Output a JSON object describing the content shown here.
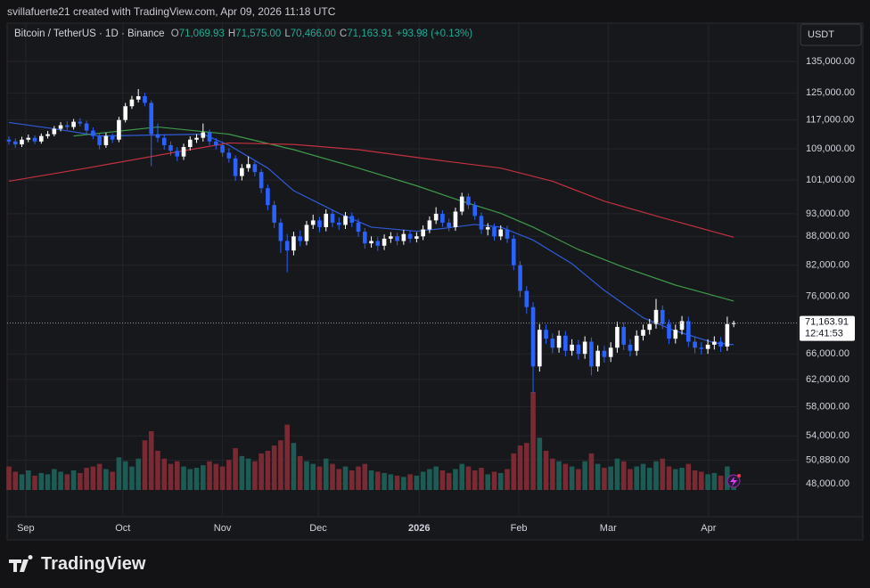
{
  "header": {
    "credit": "svillafuerte21 created with TradingView.com, Apr 09, 2026 11:18 UTC",
    "symbol": "Bitcoin / TetherUS · 1D · Binance",
    "ohlc": [
      {
        "label": "O",
        "value": "71,069.93"
      },
      {
        "label": "H",
        "value": "71,575.00"
      },
      {
        "label": "L",
        "value": "70,466.00"
      },
      {
        "label": "C",
        "value": "71,163.91"
      }
    ],
    "change": "+93.98 (+0.13%)",
    "currency": "USDT"
  },
  "footer": {
    "brand": "TradingView"
  },
  "chart_data": {
    "type": "candlestick",
    "log_scale": true,
    "grid": true,
    "up_color": "#ffffff",
    "down_color": "#2962ff",
    "vol_up_color": "#1d5c55",
    "vol_down_color": "#7a2a33",
    "ylim": [
      44300,
      147000
    ],
    "yticks": [
      {
        "value": 135000,
        "label": "135,000.00"
      },
      {
        "value": 125000,
        "label": "125,000.00"
      },
      {
        "value": 117000,
        "label": "117,000.00"
      },
      {
        "value": 109000,
        "label": "109,000.00"
      },
      {
        "value": 101000,
        "label": "101,000.00"
      },
      {
        "value": 93000,
        "label": "93,000.00"
      },
      {
        "value": 88000,
        "label": "88,000.00"
      },
      {
        "value": 82000,
        "label": "82,000.00"
      },
      {
        "value": 76000,
        "label": "76,000.00"
      },
      {
        "value": 66000,
        "label": "66,000.00"
      },
      {
        "value": 62000,
        "label": "62,000.00"
      },
      {
        "value": 58000,
        "label": "58,000.00"
      },
      {
        "value": 54000,
        "label": "54,000.00"
      },
      {
        "value": 50880,
        "label": "50,880.00"
      },
      {
        "value": 48000,
        "label": "48,000.00"
      }
    ],
    "xlim": [
      0,
      122
    ],
    "xticks": [
      {
        "value": 2.6,
        "label": "Sep"
      },
      {
        "value": 17.6,
        "label": "Oct"
      },
      {
        "value": 33.0,
        "label": "Nov"
      },
      {
        "value": 47.8,
        "label": "Dec"
      },
      {
        "value": 63.4,
        "label": "2026"
      },
      {
        "value": 78.8,
        "label": "Feb"
      },
      {
        "value": 92.6,
        "label": "Mar"
      },
      {
        "value": 108.1,
        "label": "Apr"
      }
    ],
    "last_price": {
      "value": 71163.91,
      "label": "71,163.91"
    },
    "countdown": "12:41:53",
    "open": [
      111500,
      111000,
      110200,
      111500,
      112000,
      111000,
      112500,
      113000,
      114500,
      115500,
      115000,
      116500,
      116000,
      114000,
      112500,
      110000,
      112500,
      111500,
      117000,
      121000,
      123000,
      124000,
      122000,
      113000,
      112000,
      110000,
      108500,
      107000,
      109500,
      111500,
      112000,
      113500,
      111000,
      110000,
      108000,
      106500,
      102000,
      104000,
      105000,
      103000,
      99000,
      95000,
      91000,
      87000,
      85000,
      88000,
      87000,
      90500,
      91500,
      90000,
      93000,
      91000,
      90500,
      92500,
      91000,
      89000,
      86500,
      87000,
      86000,
      87500,
      88000,
      87000,
      88500,
      87500,
      88000,
      89500,
      91500,
      93000,
      91000,
      90000,
      93500,
      97000,
      95000,
      92500,
      89500,
      90000,
      88000,
      89500,
      87500,
      82000,
      77000,
      74000,
      64000,
      70000,
      68500,
      67000,
      69000,
      66500,
      67500,
      66000,
      68000,
      64000,
      66500,
      65500,
      67000,
      70500,
      67500,
      66500,
      69000,
      70000,
      71000,
      73500,
      71000,
      68500,
      70000,
      71500,
      68000,
      67000,
      66800,
      67500,
      68000,
      67200,
      71069.93
    ],
    "high": [
      112400,
      111800,
      112300,
      112900,
      112700,
      113200,
      113900,
      115300,
      116400,
      116600,
      117300,
      117500,
      116800,
      114900,
      113300,
      113400,
      113200,
      117900,
      122000,
      124100,
      126200,
      125000,
      122800,
      116000,
      113000,
      111000,
      109500,
      110400,
      112400,
      113000,
      116000,
      114300,
      111900,
      110800,
      109200,
      107300,
      105000,
      107000,
      105800,
      103800,
      99900,
      96000,
      91900,
      88500,
      89000,
      89300,
      91400,
      92800,
      92300,
      94000,
      93900,
      92200,
      93400,
      93300,
      91900,
      89800,
      88000,
      87900,
      88400,
      88900,
      88800,
      89400,
      89300,
      88900,
      90400,
      92400,
      94500,
      93800,
      91900,
      94400,
      97900,
      97800,
      95800,
      93300,
      90900,
      90800,
      90400,
      90300,
      88300,
      82800,
      77900,
      74900,
      71000,
      70900,
      69400,
      69900,
      69800,
      68400,
      68300,
      68900,
      68700,
      67400,
      67300,
      67900,
      71400,
      71300,
      68400,
      69900,
      70900,
      71900,
      75500,
      74300,
      71800,
      70900,
      72400,
      72300,
      68900,
      67900,
      68400,
      68900,
      68800,
      72300,
      71575
    ],
    "low": [
      110100,
      109300,
      109500,
      110800,
      110300,
      110400,
      111800,
      112400,
      113800,
      114200,
      114300,
      115200,
      113100,
      111600,
      108900,
      109300,
      110600,
      110800,
      116300,
      120200,
      122100,
      121000,
      104500,
      110800,
      108800,
      107200,
      105800,
      106100,
      108600,
      110600,
      111000,
      110000,
      108900,
      107000,
      105400,
      100800,
      100900,
      103100,
      101900,
      97800,
      93800,
      89800,
      84500,
      80600,
      84000,
      85900,
      86100,
      89600,
      88900,
      89100,
      90000,
      89400,
      89600,
      90000,
      87900,
      85400,
      85600,
      84900,
      85100,
      86600,
      86100,
      86200,
      86600,
      86700,
      87200,
      88700,
      90700,
      90100,
      89100,
      89200,
      92700,
      94100,
      91600,
      88500,
      88200,
      87100,
      87200,
      86600,
      81000,
      75800,
      72800,
      60000,
      63200,
      67600,
      66100,
      66200,
      65600,
      65700,
      65100,
      65200,
      62600,
      63200,
      64600,
      64700,
      66200,
      66600,
      65600,
      65700,
      68200,
      69200,
      70200,
      70100,
      67600,
      67700,
      69200,
      67100,
      66100,
      65900,
      66000,
      66700,
      66300,
      66500,
      70466
    ],
    "close": [
      111000,
      110200,
      111500,
      112000,
      111000,
      112500,
      113000,
      114500,
      115500,
      115000,
      116500,
      116000,
      114000,
      112500,
      110000,
      112500,
      111500,
      117000,
      121000,
      123000,
      124000,
      122000,
      113000,
      112000,
      110000,
      108500,
      107000,
      109500,
      111500,
      112000,
      113500,
      111000,
      110000,
      108000,
      106500,
      102000,
      104000,
      105000,
      103000,
      99000,
      95000,
      91000,
      87000,
      85000,
      88000,
      87000,
      90500,
      91500,
      90000,
      93000,
      91000,
      90500,
      92500,
      91000,
      89000,
      86500,
      87000,
      86000,
      87500,
      88000,
      87000,
      88500,
      87500,
      88000,
      89500,
      91500,
      93000,
      91000,
      90000,
      93500,
      97000,
      95000,
      92500,
      89500,
      90000,
      88000,
      89500,
      87500,
      82000,
      77000,
      74000,
      64000,
      70000,
      68500,
      67000,
      69000,
      66500,
      67500,
      66000,
      68000,
      64000,
      66500,
      65500,
      67000,
      70500,
      67500,
      66500,
      69000,
      70000,
      71000,
      73500,
      71000,
      68500,
      70000,
      71500,
      68000,
      67000,
      66800,
      67500,
      68000,
      67200,
      71000,
      71163.91
    ],
    "vlim": [
      0,
      75000
    ],
    "volume": [
      18000,
      14000,
      12000,
      15000,
      11000,
      13000,
      12000,
      16000,
      14000,
      12000,
      15000,
      13000,
      17000,
      18000,
      20000,
      16000,
      14000,
      25000,
      22000,
      18000,
      24000,
      38000,
      45000,
      30000,
      24000,
      20000,
      22000,
      18000,
      16000,
      17000,
      19000,
      22000,
      20000,
      18000,
      23000,
      32000,
      26000,
      24000,
      22000,
      28000,
      30000,
      34000,
      38000,
      50000,
      36000,
      26000,
      22000,
      20000,
      18000,
      24000,
      20000,
      16000,
      18000,
      15000,
      18000,
      20000,
      15000,
      14000,
      13000,
      12000,
      11000,
      10000,
      12000,
      11000,
      14000,
      16000,
      18000,
      15000,
      13000,
      16000,
      20000,
      18000,
      15000,
      17000,
      12000,
      14000,
      13000,
      16000,
      28000,
      34000,
      36000,
      75000,
      40000,
      30000,
      24000,
      22000,
      20000,
      18000,
      16000,
      22000,
      28000,
      20000,
      17000,
      18000,
      24000,
      22000,
      16000,
      18000,
      20000,
      17000,
      22000,
      24000,
      18000,
      16000,
      17000,
      20000,
      15000,
      14000,
      12000,
      13000,
      11000,
      18000,
      10000
    ],
    "lines": [
      {
        "color": "#2f5bd6",
        "x": [
          0,
          7,
          14,
          30,
          34,
          40,
          44,
          51,
          56,
          63,
          67,
          72,
          76,
          81,
          87,
          92,
          98,
          103,
          109,
          112
        ],
        "values": [
          116300,
          114500,
          112500,
          113000,
          110000,
          104000,
          98400,
          93100,
          90000,
          89100,
          89700,
          90600,
          90000,
          87200,
          82300,
          77100,
          72100,
          69800,
          67800,
          67500
        ]
      },
      {
        "color": "#3f9a4a",
        "x": [
          10,
          23,
          34,
          44,
          54,
          63,
          70,
          76,
          81,
          88,
          95,
          103,
          112
        ],
        "values": [
          112500,
          115000,
          113000,
          108800,
          104000,
          99600,
          95900,
          93100,
          90000,
          85200,
          81600,
          78100,
          75100
        ]
      },
      {
        "color": "#c2313f",
        "x": [
          0,
          12,
          26,
          34,
          44,
          54,
          65,
          76,
          84,
          92,
          101,
          112
        ],
        "values": [
          100700,
          104000,
          108200,
          110600,
          110200,
          108800,
          106300,
          104000,
          100700,
          95900,
          92100,
          87800
        ]
      }
    ]
  }
}
